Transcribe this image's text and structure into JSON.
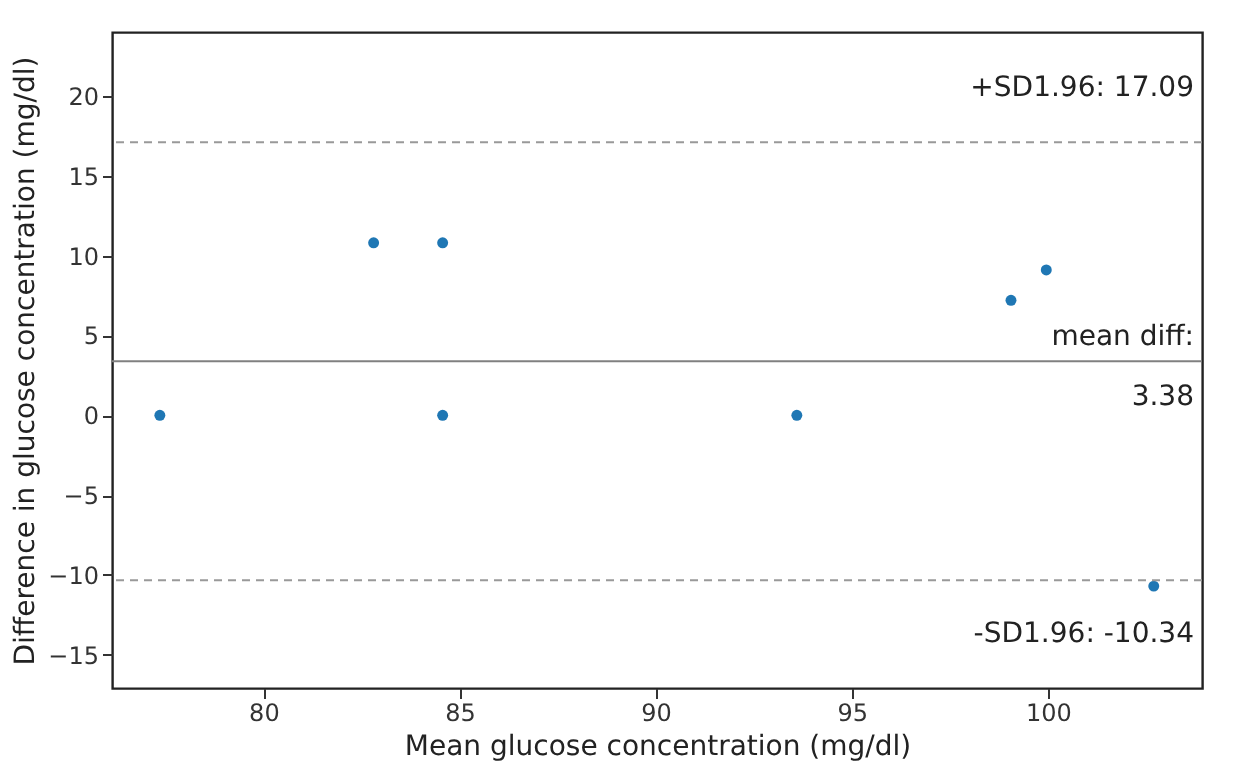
{
  "chart_data": {
    "type": "scatter",
    "xlabel": "Mean glucose concentration (mg/dl)",
    "ylabel": "Difference in glucose concentration (mg/dl)",
    "x": [
      77.36,
      82.81,
      84.57,
      84.57,
      93.6,
      99.06,
      99.96,
      102.7
    ],
    "series": [
      {
        "color": "#1f77b4",
        "values": [
          0,
          10.8,
          10.8,
          0,
          0,
          7.2,
          9.1,
          -10.7
        ]
      }
    ],
    "xlim": [
      76.14,
      103.93
    ],
    "xticks": [
      80,
      85,
      90,
      95,
      100
    ],
    "ylim": [
      -17.08,
      24
    ],
    "yticks": [
      -15,
      -10,
      -5,
      0,
      5,
      10,
      15,
      20
    ],
    "ref_lines": [
      {
        "axis": "y",
        "value": 17.09,
        "label": "+SD1.96: 17.09",
        "color": "#999999",
        "line_style": "dashed"
      },
      {
        "axis": "y",
        "value": 3.38,
        "label": "mean diff:\n3.38",
        "color": "#808080",
        "line_style": "solid"
      },
      {
        "axis": "y",
        "value": -10.34,
        "label": "-SD1.96: -10.34",
        "color": "#999999",
        "line_style": "dashed"
      }
    ],
    "marker": "circle",
    "grid": false
  }
}
